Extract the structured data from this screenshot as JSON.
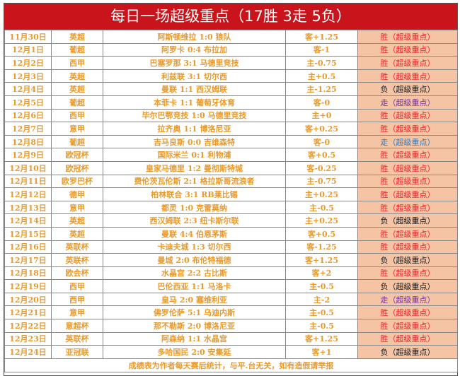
{
  "title": "每日一场超级重点（17胜 3走 5负）",
  "colors": {
    "header_bg": "#c8141a",
    "text": "#e89a2c",
    "result_bg": "#f5c4a4",
    "win": "#e8202a",
    "loss": "#111111",
    "push_purple": "#7030a0",
    "push_blue": "#2e75b6"
  },
  "rows": [
    {
      "date": "11月30日",
      "league": "英超",
      "match": "阿斯顿维拉 1:0 狼队",
      "handicap": "客+1.25",
      "result": "胜（超级重点）",
      "type": "win"
    },
    {
      "date": "12月1日",
      "league": "葡超",
      "match": "阿罗卡 0:4 布拉加",
      "handicap": "客-1",
      "result": "胜（超级重点）",
      "type": "win"
    },
    {
      "date": "12月2日",
      "league": "西甲",
      "match": "巴塞罗那 3:1 马德里竞技",
      "handicap": "主-0.75",
      "result": "胜（超级重点）",
      "type": "win"
    },
    {
      "date": "12月3日",
      "league": "英超",
      "match": "利兹联 3:1 切尔西",
      "handicap": "主+0.5",
      "result": "胜（超级重点）",
      "type": "win"
    },
    {
      "date": "12月4日",
      "league": "英超",
      "match": "曼联 1:1 西汉姆联",
      "handicap": "主-1.25",
      "result": "负（超级重点）",
      "type": "loss"
    },
    {
      "date": "12月5日",
      "league": "葡超",
      "match": "本菲卡 1:1 葡萄牙体育",
      "handicap": "客-0",
      "result": "走（超级重点）",
      "type": "push_purple"
    },
    {
      "date": "12月6日",
      "league": "西甲",
      "match": "毕尔巴鄂竞技 1:0 马德里竞技",
      "handicap": "主+0",
      "result": "胜（超级重点）",
      "type": "win"
    },
    {
      "date": "12月7日",
      "league": "意甲",
      "match": "拉齐奥 1:1 博洛尼亚",
      "handicap": "客+0.25",
      "result": "胜（超级重点）",
      "type": "win"
    },
    {
      "date": "12月8日",
      "league": "葡超",
      "match": "吉马良斯 0:0 吉维森特",
      "handicap": "客-0",
      "result": "走（超级重点）",
      "type": "push_blue"
    },
    {
      "date": "12月9日",
      "league": "欧冠杯",
      "match": "国际米兰 0:1 利物浦",
      "handicap": "客+0.5",
      "result": "胜（超级重点）",
      "type": "win"
    },
    {
      "date": "12月10日",
      "league": "欧冠杯",
      "match": "皇家马德里 1:2 曼彻斯特城",
      "handicap": "客-0.25",
      "result": "胜（超级重点）",
      "type": "win"
    },
    {
      "date": "12月11日",
      "league": "欧罗巴杯",
      "match": "费伦茨瓦伦斯 2:1 格拉斯哥流浪者",
      "handicap": "主-0.75",
      "result": "胜（超级重点）",
      "type": "win"
    },
    {
      "date": "12月12日",
      "league": "德甲",
      "match": "柏林联合 3:1 RB莱比锡",
      "handicap": "主+0.25",
      "result": "胜（超级重点）",
      "type": "win"
    },
    {
      "date": "12月13日",
      "league": "意甲",
      "match": "都灵 1:0 克雷莫纳",
      "handicap": "主-0.5",
      "result": "胜（超级重点）",
      "type": "win"
    },
    {
      "date": "12月14日",
      "league": "英超",
      "match": "西汉姆联 2:3 纽卡斯尔联",
      "handicap": "主+0.25",
      "result": "负（超级重点）",
      "type": "loss"
    },
    {
      "date": "12月15日",
      "league": "英超",
      "match": "曼联 4:4 伯恩茅斯",
      "handicap": "客+0.5",
      "result": "胜（超级重点）",
      "type": "win"
    },
    {
      "date": "12月16日",
      "league": "英联杯",
      "match": "卡迪夫城 1:3 切尔西",
      "handicap": "客-1.25",
      "result": "胜（超级重点）",
      "type": "win"
    },
    {
      "date": "12月17日",
      "league": "英联杯",
      "match": "曼城 2:0 布伦特福德",
      "handicap": "客+1.25",
      "result": "负（超级重点）",
      "type": "loss"
    },
    {
      "date": "12月18日",
      "league": "欧会杯",
      "match": "水晶宫 2:2 古比斯",
      "handicap": "客+2",
      "result": "胜（超级重点）",
      "type": "win"
    },
    {
      "date": "12月19日",
      "league": "西甲",
      "match": "巴伦西亚 1:1 马洛卡",
      "handicap": "主-0.5",
      "result": "负（超级重点）",
      "type": "loss"
    },
    {
      "date": "12月20日",
      "league": "西甲",
      "match": "皇马 2:0 塞维利亚",
      "handicap": "主-2",
      "result": "走（超级重点）",
      "type": "push_purple"
    },
    {
      "date": "12月21日",
      "league": "意甲",
      "match": "佛罗伦萨 5:1 乌迪内斯",
      "handicap": "主-0.5",
      "result": "胜（超级重点）",
      "type": "win"
    },
    {
      "date": "12月22日",
      "league": "意超杯",
      "match": "那不勒斯 2:0 博洛尼亚",
      "handicap": "主-0.5",
      "result": "胜（超级重点）",
      "type": "win"
    },
    {
      "date": "12月23日",
      "league": "英联杯",
      "match": "阿森纳 1:1 水晶宫",
      "handicap": "客+1.25",
      "result": "胜（超级重点）",
      "type": "win"
    },
    {
      "date": "12月24日",
      "league": "亚冠联",
      "match": "多哈国民 2:0 安集延",
      "handicap": "客+1",
      "result": "负（超级重点）",
      "type": "loss"
    }
  ],
  "footer": "成绩表为作者每天赛后统计，与平.台无关，如有造假请举报"
}
